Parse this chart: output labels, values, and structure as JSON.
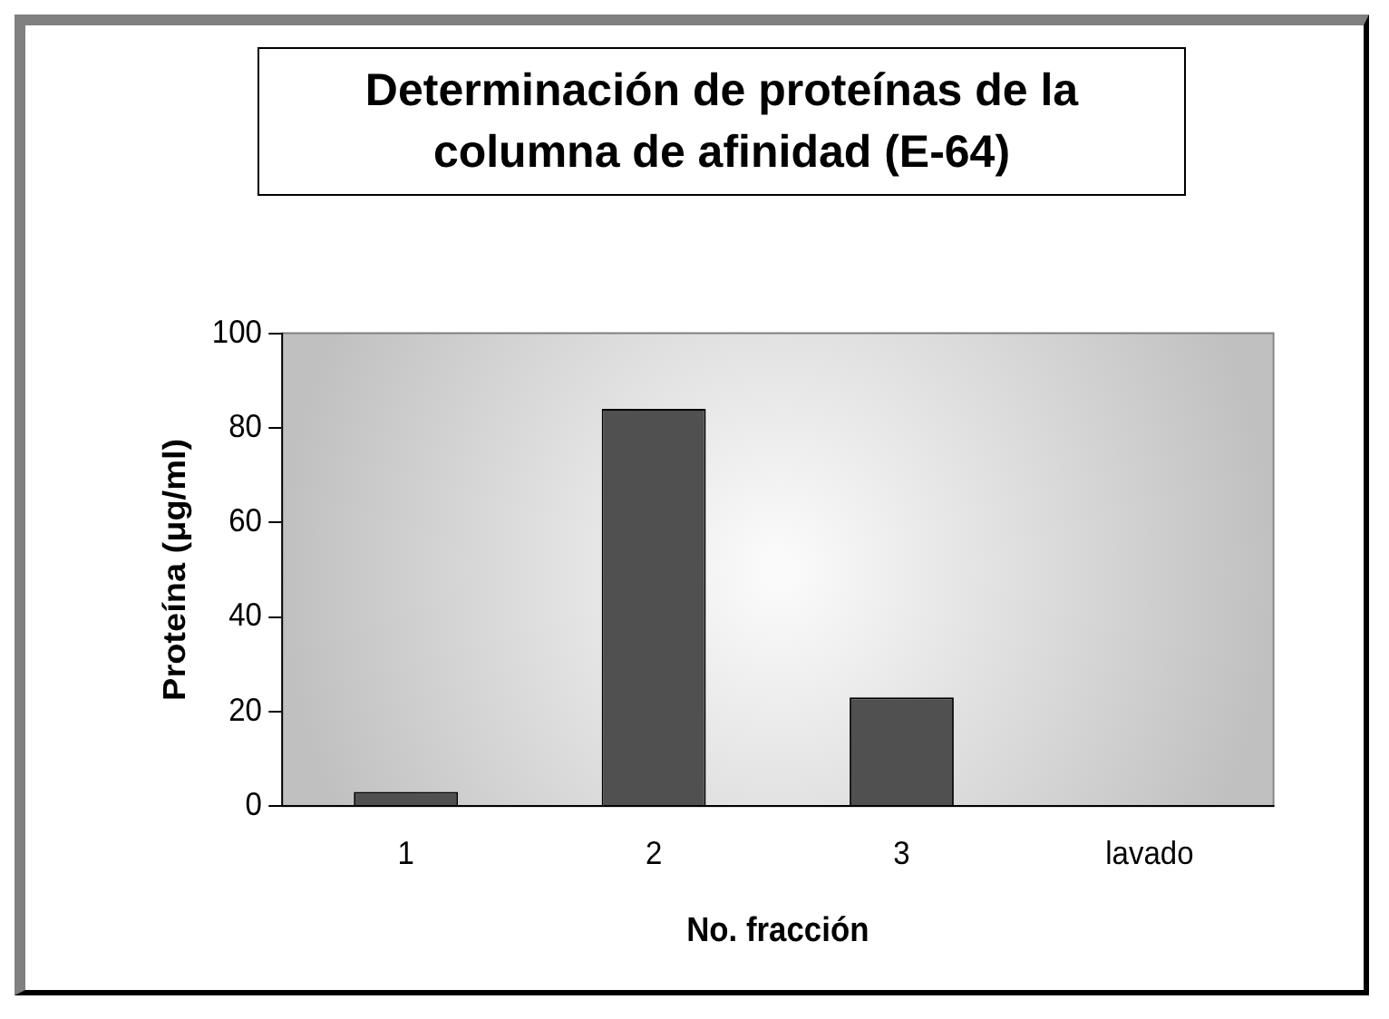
{
  "chart_data": {
    "type": "bar",
    "title": "Determinación de proteínas de la columna de afinidad (E-64)",
    "xlabel": "No. fracción",
    "ylabel": "Proteína (μg/ml)",
    "categories": [
      "1",
      "2",
      "3",
      "lavado"
    ],
    "values": [
      3,
      84,
      23,
      0
    ],
    "color": "#505050",
    "ylim": [
      0,
      100
    ],
    "yticks": [
      0,
      20,
      40,
      60,
      80,
      100
    ],
    "grid": false,
    "legend": false
  }
}
